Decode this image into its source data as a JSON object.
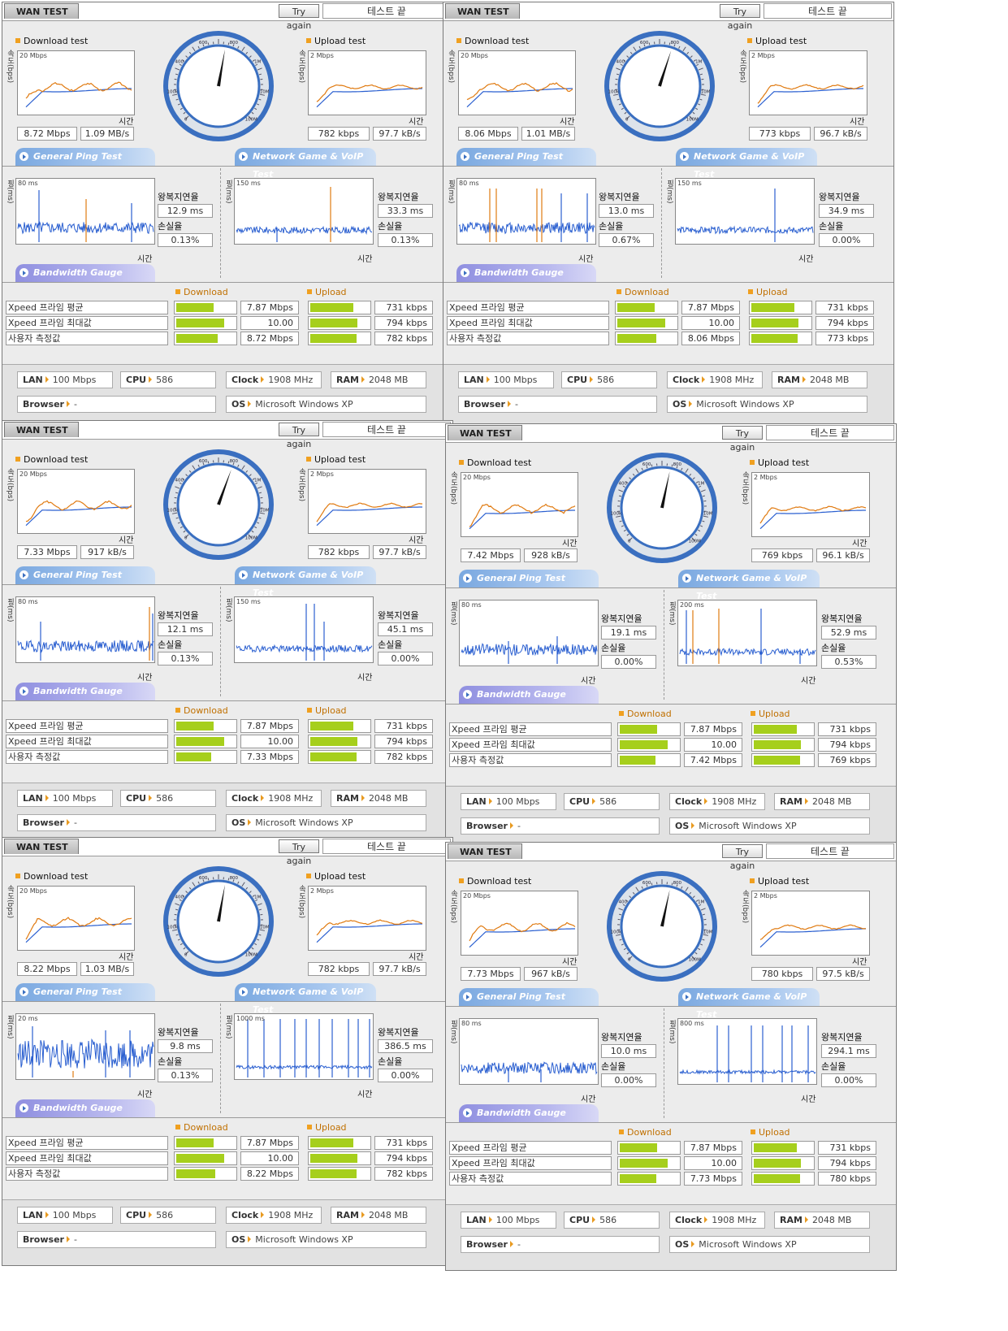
{
  "common": {
    "tab": "WAN TEST",
    "try_again": "Try again",
    "status": "테스트 끝",
    "download_test": "Download test",
    "upload_test": "Upload test",
    "speed_axis": "속도(bps)",
    "ping_axis": "핑(ms)",
    "dl_scale": "20 Mbps",
    "ul_scale": "2 Mbps",
    "time": "시간",
    "general_ping": "General Ping Test",
    "game_voip": "Network Game & VoIP Test",
    "rtt": "왕복지연율",
    "loss": "손실율",
    "bandwidth_gauge": "Bandwidth Gauge",
    "download": "Download",
    "upload": "Upload",
    "row_avg": "Xpeed 프라임 평균",
    "row_max": "Xpeed 프라임 최대값",
    "row_user": "사용자 측정값",
    "avg_dl": "7.87 Mbps",
    "max_dl": "10.00 Mbps",
    "avg_ul": "731 kbps",
    "max_ul": "794 kbps",
    "lan_label": "LAN",
    "lan": "100 Mbps",
    "cpu_label": "CPU",
    "cpu": "586",
    "clock_label": "Clock",
    "clock": "1908 MHz",
    "ram_label": "RAM",
    "ram": "2048 MB",
    "browser_label": "Browser",
    "browser": "-",
    "os_label": "OS",
    "os": "Microsoft Windows XP",
    "gauge_labels": [
      "0",
      "100k",
      "400",
      "600",
      "800",
      "1M",
      "10M",
      "100M"
    ],
    "colors": {
      "accent_blue": "#3a6fc0",
      "bar_green": "#a6cf1c",
      "graph_orange": "#e07a10",
      "graph_blue": "#2a5fd0"
    }
  },
  "panels": [
    {
      "dl_mbps": "8.72 Mbps",
      "dl_mbs": "1.09 MB/s",
      "ul_kbps": "782 kbps",
      "ul_kbs": "97.7 kB/s",
      "ping1_scale": "80 ms",
      "ping1_rtt": "12.9 ms",
      "ping1_loss": "0.13%",
      "ping2_scale": "150 ms",
      "ping2_rtt": "33.3 ms",
      "ping2_loss": "0.13%",
      "user_dl": "8.72 Mbps",
      "user_ul": "782 kbps",
      "dl_frac": 0.87,
      "ul_frac": 0.98
    },
    {
      "dl_mbps": "8.06 Mbps",
      "dl_mbs": "1.01 MB/s",
      "ul_kbps": "773 kbps",
      "ul_kbs": "96.7 kB/s",
      "ping1_scale": "80 ms",
      "ping1_rtt": "13.0 ms",
      "ping1_loss": "0.67%",
      "ping2_scale": "150 ms",
      "ping2_rtt": "34.9 ms",
      "ping2_loss": "0.00%",
      "user_dl": "8.06 Mbps",
      "user_ul": "773 kbps",
      "dl_frac": 0.81,
      "ul_frac": 0.97
    },
    {
      "dl_mbps": "7.33 Mbps",
      "dl_mbs": "917 kB/s",
      "ul_kbps": "782 kbps",
      "ul_kbs": "97.7 kB/s",
      "ping1_scale": "80 ms",
      "ping1_rtt": "12.1 ms",
      "ping1_loss": "0.13%",
      "ping2_scale": "150 ms",
      "ping2_rtt": "45.1 ms",
      "ping2_loss": "0.00%",
      "user_dl": "7.33 Mbps",
      "user_ul": "782 kbps",
      "dl_frac": 0.73,
      "ul_frac": 0.98
    },
    {
      "dl_mbps": "7.42 Mbps",
      "dl_mbs": "928 kB/s",
      "ul_kbps": "769 kbps",
      "ul_kbs": "96.1 kB/s",
      "ping1_scale": "80 ms",
      "ping1_rtt": "19.1 ms",
      "ping1_loss": "0.00%",
      "ping2_scale": "200 ms",
      "ping2_rtt": "52.9 ms",
      "ping2_loss": "0.53%",
      "user_dl": "7.42 Mbps",
      "user_ul": "769 kbps",
      "dl_frac": 0.74,
      "ul_frac": 0.97
    },
    {
      "dl_mbps": "8.22 Mbps",
      "dl_mbs": "1.03 MB/s",
      "ul_kbps": "782 kbps",
      "ul_kbs": "97.7 kB/s",
      "ping1_scale": "20 ms",
      "ping1_rtt": "9.8 ms",
      "ping1_loss": "0.13%",
      "ping2_scale": "1000 ms",
      "ping2_rtt": "386.5 ms",
      "ping2_loss": "0.00%",
      "user_dl": "8.22 Mbps",
      "user_ul": "782 kbps",
      "dl_frac": 0.82,
      "ul_frac": 0.98
    },
    {
      "dl_mbps": "7.73 Mbps",
      "dl_mbs": "967 kB/s",
      "ul_kbps": "780 kbps",
      "ul_kbs": "97.5 kB/s",
      "ping1_scale": "80 ms",
      "ping1_rtt": "10.0 ms",
      "ping1_loss": "0.00%",
      "ping2_scale": "800 ms",
      "ping2_rtt": "294.1 ms",
      "ping2_loss": "0.00%",
      "user_dl": "7.73 Mbps",
      "user_ul": "780 kbps",
      "dl_frac": 0.77,
      "ul_frac": 0.98
    }
  ]
}
